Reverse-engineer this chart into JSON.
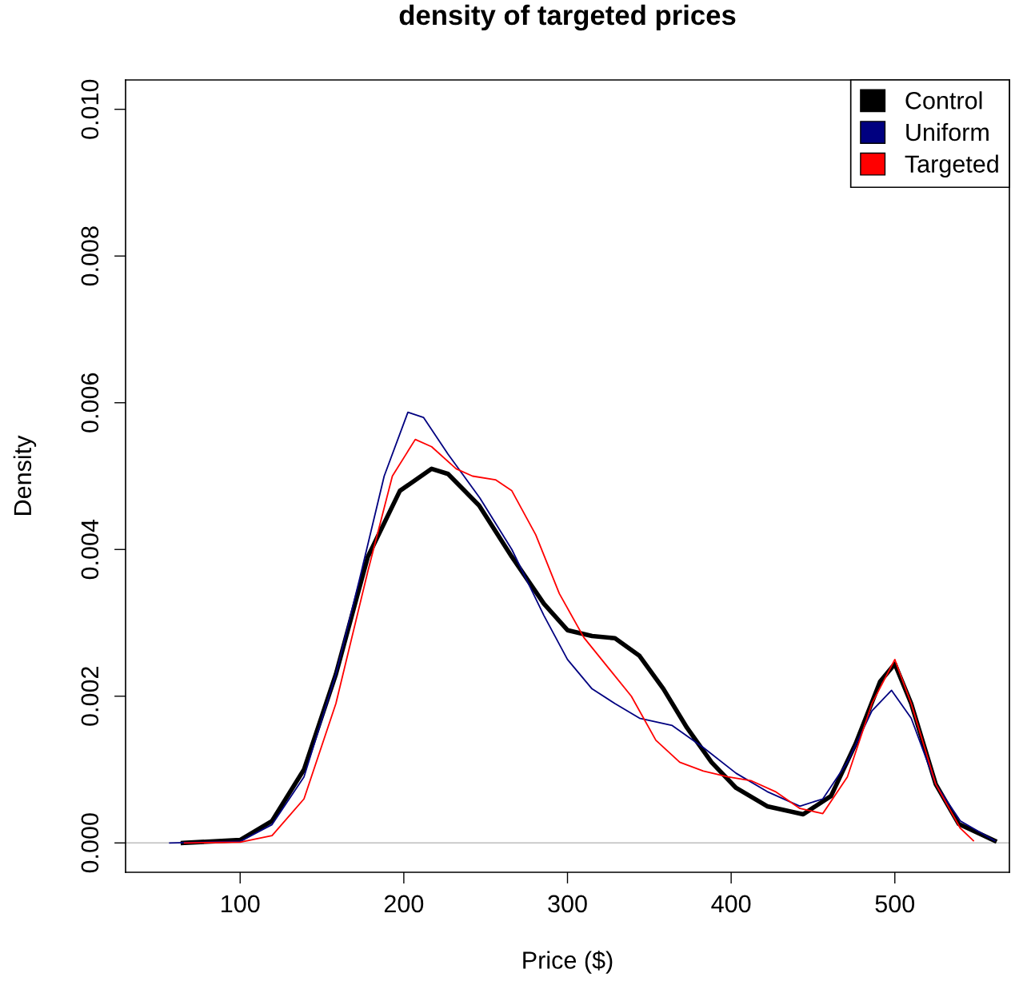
{
  "chart_data": {
    "type": "line",
    "title": "density of targeted prices",
    "xlabel": "Price ($)",
    "ylabel": "Density",
    "xlim": [
      30,
      570
    ],
    "ylim": [
      -0.0004,
      0.0104
    ],
    "xticks": [
      100,
      200,
      300,
      400,
      500
    ],
    "yticks": [
      {
        "value": 0,
        "label": "0.000"
      },
      {
        "value": 0.002,
        "label": "0.002"
      },
      {
        "value": 0.004,
        "label": "0.004"
      },
      {
        "value": 0.006,
        "label": "0.006"
      },
      {
        "value": 0.008,
        "label": "0.008"
      },
      {
        "value": 0.01,
        "label": "0.010"
      }
    ],
    "grid": false,
    "legend": "top right",
    "marker": "none",
    "line_style": "solid",
    "ref_lines": [
      {
        "axis": "y",
        "value": 0,
        "color": "#bebebe"
      }
    ],
    "series": [
      {
        "name": "Control",
        "color": "#000000",
        "x": [
          65,
          100,
          119.5,
          139,
          158.5,
          178,
          197.6,
          217,
          227,
          246,
          266,
          285.6,
          300,
          315,
          329,
          344,
          358.6,
          373,
          388,
          403,
          422,
          444,
          461,
          476,
          491,
          500,
          510,
          525,
          539,
          561
        ],
        "values": [
          0,
          4e-05,
          0.0003,
          0.001,
          0.0023,
          0.0039,
          0.0048,
          0.0051,
          0.00503,
          0.0046,
          0.0039,
          0.00326,
          0.0029,
          0.00282,
          0.00279,
          0.00255,
          0.0021,
          0.00157,
          0.0011,
          0.00075,
          0.0005,
          0.00039,
          0.00064,
          0.00135,
          0.0022,
          0.00244,
          0.0019,
          0.0008,
          0.00026,
          3e-05
        ]
      },
      {
        "name": "Uniform",
        "color": "#000080",
        "x": [
          57,
          100,
          119.5,
          139,
          158.5,
          173,
          188,
          202.5,
          212,
          227,
          246.5,
          266,
          285.6,
          300,
          315,
          329,
          344,
          364,
          383,
          403,
          422,
          442,
          456,
          471,
          486,
          498,
          510,
          525,
          540,
          561
        ],
        "values": [
          0,
          2e-05,
          0.00025,
          0.0009,
          0.0023,
          0.0036,
          0.005,
          0.00587,
          0.0058,
          0.0053,
          0.0047,
          0.004,
          0.0031,
          0.0025,
          0.0021,
          0.0019,
          0.0017,
          0.0016,
          0.0013,
          0.00095,
          0.0007,
          0.0005,
          0.0006,
          0.0011,
          0.0018,
          0.00208,
          0.0017,
          0.0008,
          0.0003,
          3e-05
        ]
      },
      {
        "name": "Targeted",
        "color": "#ff0000",
        "x": [
          66,
          100,
          119.5,
          139,
          158.5,
          178,
          193,
          207,
          217,
          232,
          242,
          256,
          266,
          280.6,
          295,
          310,
          324.5,
          339,
          354,
          368.6,
          383,
          398,
          412,
          427,
          442,
          456,
          471,
          486,
          500,
          510,
          525,
          540,
          548
        ],
        "values": [
          0,
          1e-05,
          0.0001,
          0.0006,
          0.0019,
          0.0037,
          0.005,
          0.0055,
          0.0054,
          0.0051,
          0.005,
          0.00495,
          0.0048,
          0.0042,
          0.0034,
          0.0028,
          0.0024,
          0.002,
          0.0014,
          0.0011,
          0.00098,
          0.0009,
          0.00085,
          0.0007,
          0.00047,
          0.0004,
          0.0009,
          0.0019,
          0.0025,
          0.0019,
          0.0008,
          0.0002,
          3e-05
        ]
      }
    ]
  }
}
